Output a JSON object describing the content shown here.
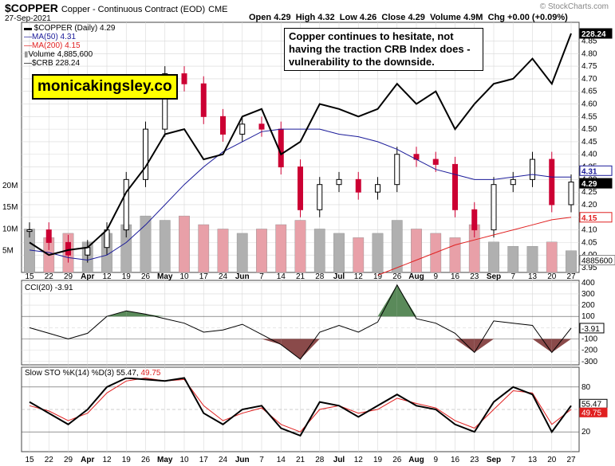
{
  "header": {
    "symbol": "$COPPER",
    "description": "Copper - Continuous Contract (EOD)",
    "exchange": "CME",
    "date": "27-Sep-2021",
    "open_label": "Open",
    "open": "4.29",
    "high_label": "High",
    "high": "4.32",
    "low_label": "Low",
    "low": "4.26",
    "close_label": "Close",
    "close": "4.29",
    "volume_label": "Volume",
    "volume": "4.9M",
    "chg_label": "Chg",
    "chg": "+0.00 (+0.09%)",
    "stamp": "© StockCharts.com"
  },
  "legend": {
    "price": "$COPPER (Daily) 4.29",
    "ma50": "MA(50) 4.31",
    "ma200": "MA(200) 4.15",
    "volume": "Volume 4,885,600",
    "crb": "$CRB 228.24"
  },
  "brand": "monicakingsley.co",
  "annotation": "Copper continues to hesitate, not having the traction CRB Index does - vulnerability to the downside.",
  "colors": {
    "up": "#000000",
    "down": "#cc0033",
    "ma50": "#1a1a99",
    "ma200": "#e02020",
    "crb": "#000000",
    "vol_up": "#b0b0b0",
    "vol_down": "#e8a0a8",
    "cci_pos": "#5a8a5a",
    "cci_neg": "#8a4a4a",
    "sto_k": "#000000",
    "sto_d": "#e02020",
    "grid": "#d8d8d8",
    "price_tag_ma50": "#1a1a99",
    "price_tag_ma200": "#e02020"
  },
  "x_labels": [
    "15",
    "22",
    "29",
    "Apr",
    "12",
    "19",
    "26",
    "May",
    "10",
    "17",
    "24",
    "Jun",
    "7",
    "14",
    "21",
    "28",
    "Jul",
    "12",
    "19",
    "26",
    "Aug",
    "9",
    "16",
    "23",
    "Sep",
    "7",
    "13",
    "20",
    "27"
  ],
  "price_axis": {
    "ticks": [
      "3.95",
      "4.00",
      "4.05",
      "4.10",
      "4.15",
      "4.20",
      "4.25",
      "4.30",
      "4.35",
      "4.40",
      "4.45",
      "4.50",
      "4.55",
      "4.60",
      "4.65",
      "4.70",
      "4.75",
      "4.80",
      "4.85"
    ],
    "tags": {
      "crb": "228.24",
      "ma50": "4.31",
      "close": "4.29",
      "ma200": "4.15",
      "volume": "4885600"
    }
  },
  "volume_axis": {
    "ticks": [
      "5M",
      "10M",
      "15M",
      "20M"
    ]
  },
  "cci_panel": {
    "label": "CCI(20) -3.91",
    "ticks": [
      "400",
      "300",
      "200",
      "100",
      "0",
      "-100",
      "-200",
      "-300"
    ],
    "tag": "-3.91"
  },
  "sto_panel": {
    "label_prefix": "Slow STO %K(14) %D(3)",
    "k": "55.47",
    "d": "49.75",
    "ticks": [
      "80",
      "20"
    ],
    "tag_k": "55.47",
    "tag_d": "49.75"
  },
  "chart_data": {
    "type": "line",
    "title": "$COPPER Copper - Continuous Contract (EOD)",
    "dates": [
      "2021-03-15",
      "2021-03-22",
      "2021-03-29",
      "2021-04-05",
      "2021-04-12",
      "2021-04-19",
      "2021-04-26",
      "2021-05-03",
      "2021-05-10",
      "2021-05-17",
      "2021-05-24",
      "2021-06-01",
      "2021-06-07",
      "2021-06-14",
      "2021-06-21",
      "2021-06-28",
      "2021-07-06",
      "2021-07-12",
      "2021-07-19",
      "2021-07-26",
      "2021-08-02",
      "2021-08-09",
      "2021-08-16",
      "2021-08-23",
      "2021-09-01",
      "2021-09-07",
      "2021-09-13",
      "2021-09-20",
      "2021-09-27"
    ],
    "series": [
      {
        "name": "$COPPER (Daily)",
        "values": [
          4.1,
          4.05,
          4.0,
          4.03,
          4.1,
          4.3,
          4.5,
          4.72,
          4.68,
          4.55,
          4.48,
          4.52,
          4.5,
          4.35,
          4.18,
          4.28,
          4.3,
          4.25,
          4.28,
          4.4,
          4.38,
          4.36,
          4.18,
          4.1,
          4.28,
          4.3,
          4.38,
          4.2,
          4.29
        ]
      },
      {
        "name": "MA(50)",
        "values": [
          4.02,
          4.01,
          3.99,
          3.98,
          4.0,
          4.05,
          4.12,
          4.2,
          4.28,
          4.35,
          4.41,
          4.45,
          4.49,
          4.5,
          4.5,
          4.5,
          4.48,
          4.47,
          4.45,
          4.42,
          4.38,
          4.34,
          4.32,
          4.3,
          4.3,
          4.31,
          4.32,
          4.31,
          4.31
        ]
      },
      {
        "name": "MA(200)",
        "values": [
          null,
          null,
          null,
          null,
          null,
          null,
          null,
          null,
          null,
          null,
          null,
          null,
          null,
          null,
          null,
          null,
          null,
          null,
          3.92,
          3.95,
          3.98,
          4.01,
          4.04,
          4.06,
          4.08,
          4.1,
          4.12,
          4.14,
          4.15
        ]
      },
      {
        "name": "$CRB",
        "values": [
          4.05,
          4.0,
          4.02,
          4.03,
          4.1,
          4.25,
          4.35,
          4.48,
          4.5,
          4.38,
          4.4,
          4.55,
          4.58,
          4.4,
          4.45,
          4.6,
          4.58,
          4.55,
          4.58,
          4.68,
          4.6,
          4.65,
          4.5,
          4.6,
          4.68,
          4.7,
          4.78,
          4.68,
          4.88
        ]
      }
    ],
    "volume_millions": [
      10,
      8,
      9,
      7,
      9,
      11,
      13,
      12,
      13,
      11,
      10,
      9,
      10,
      11,
      12,
      10,
      9,
      8,
      9,
      12,
      10,
      9,
      8,
      11,
      7,
      6,
      6,
      7,
      5
    ],
    "cci": [
      0,
      -50,
      -100,
      -50,
      100,
      150,
      120,
      80,
      40,
      -40,
      -20,
      30,
      -60,
      -150,
      -280,
      -40,
      20,
      -40,
      50,
      380,
      80,
      40,
      -50,
      -220,
      60,
      40,
      20,
      -220,
      -4
    ],
    "sto_k": [
      60,
      45,
      30,
      50,
      80,
      92,
      90,
      88,
      92,
      45,
      30,
      50,
      55,
      25,
      15,
      60,
      55,
      40,
      55,
      70,
      55,
      50,
      30,
      20,
      60,
      80,
      70,
      20,
      55
    ],
    "sto_d": [
      55,
      48,
      35,
      45,
      72,
      88,
      92,
      88,
      90,
      55,
      35,
      45,
      52,
      30,
      20,
      50,
      55,
      45,
      50,
      65,
      58,
      52,
      35,
      25,
      50,
      75,
      72,
      30,
      50
    ],
    "ylim": [
      3.95,
      4.88
    ]
  }
}
